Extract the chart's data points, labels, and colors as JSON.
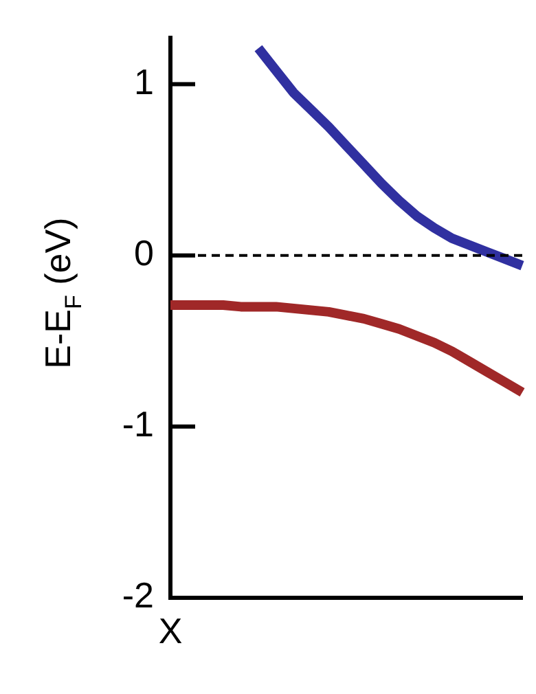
{
  "chart_data": {
    "type": "line",
    "ylabel": "E-E$_{F}$ (eV)",
    "categories": [
      "X",
      null,
      null,
      null,
      null,
      null,
      null,
      null,
      null,
      null,
      null,
      null,
      null,
      null,
      null,
      null,
      null,
      null,
      null,
      null,
      null
    ],
    "ylim": [
      -2,
      1.27
    ],
    "yticks": [
      -2,
      -1,
      0,
      1
    ],
    "series": [
      {
        "values": [
          null,
          null,
          null,
          null,
          null,
          1.21,
          1.08,
          0.95,
          0.85,
          0.75,
          0.64,
          0.53,
          0.42,
          0.32,
          0.23,
          0.16,
          0.1,
          0.06,
          0.02,
          -0.02,
          -0.06
        ],
        "color": "#3030a0"
      },
      {
        "values": [
          -0.29,
          -0.29,
          -0.29,
          -0.29,
          -0.3,
          -0.3,
          -0.3,
          -0.31,
          -0.32,
          -0.33,
          -0.35,
          -0.37,
          -0.4,
          -0.43,
          -0.47,
          -0.51,
          -0.56,
          -0.62,
          -0.68,
          -0.74,
          -0.8
        ],
        "color": "#a02828"
      }
    ],
    "ref_lines": [
      {
        "axis": "y",
        "value": 0,
        "line_style": "dashed",
        "color": "#000000"
      }
    ],
    "grid": false,
    "legend": false,
    "marker": "none",
    "line_style": "solid"
  }
}
